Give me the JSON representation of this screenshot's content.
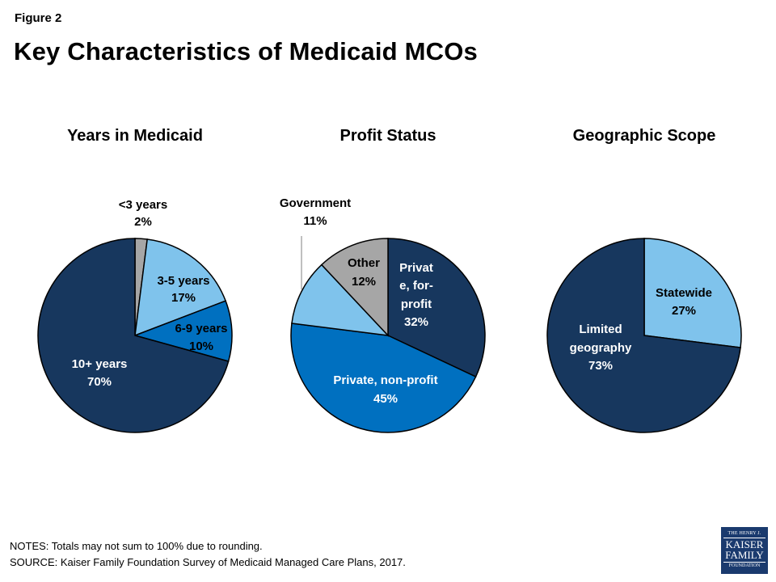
{
  "figure_label": "Figure 2",
  "title": "Key Characteristics of Medicaid MCOs",
  "colors": {
    "dark_navy": "#17375e",
    "medium_blue": "#0070c0",
    "light_blue": "#7fc3ec",
    "gray": "#a6a6a6"
  },
  "chart_data": [
    {
      "type": "pie",
      "title": "Years in Medicaid",
      "slices": [
        {
          "label": "<3 years",
          "value": 2,
          "display": "2%",
          "color": "#a6a6a6"
        },
        {
          "label": "3-5 years",
          "value": 17,
          "display": "17%",
          "color": "#7fc3ec"
        },
        {
          "label": "6-9 years",
          "value": 10,
          "display": "10%",
          "color": "#0070c0"
        },
        {
          "label": "10+ years",
          "value": 70,
          "display": "70%",
          "color": "#17375e"
        }
      ]
    },
    {
      "type": "pie",
      "title": "Profit Status",
      "slices": [
        {
          "label": "Private, for-profit",
          "value": 32,
          "display": "32%",
          "color": "#17375e"
        },
        {
          "label": "Private, non-profit",
          "value": 45,
          "display": "45%",
          "color": "#0070c0"
        },
        {
          "label": "Government",
          "value": 11,
          "display": "11%",
          "color": "#7fc3ec"
        },
        {
          "label": "Other",
          "value": 12,
          "display": "12%",
          "color": "#a6a6a6"
        }
      ]
    },
    {
      "type": "pie",
      "title": "Geographic Scope",
      "slices": [
        {
          "label": "Statewide",
          "value": 27,
          "display": "27%",
          "color": "#7fc3ec"
        },
        {
          "label": "Limited geography",
          "value": 73,
          "display": "73%",
          "color": "#17375e"
        }
      ]
    }
  ],
  "slice_label_lines": {
    "years": {
      "lt3": [
        "<3 years",
        "2%"
      ],
      "y35": [
        "3-5 years",
        "17%"
      ],
      "y69": [
        "6-9 years",
        "10%"
      ],
      "y10": [
        "10+ years",
        "70%"
      ]
    },
    "profit": {
      "forprofit": [
        "Privat",
        "e, for-",
        "profit",
        "32%"
      ],
      "nonprofit": [
        "Private, non-profit",
        "45%"
      ],
      "government": [
        "Government",
        "11%"
      ],
      "other": [
        "Other",
        "12%"
      ]
    },
    "geo": {
      "statewide": [
        "Statewide",
        "27%"
      ],
      "limited": [
        "Limited",
        "geography",
        "73%"
      ]
    }
  },
  "notes": "NOTES: Totals may not sum to 100% due to rounding.",
  "source": "SOURCE: Kaiser Family Foundation Survey of Medicaid Managed Care Plans, 2017.",
  "logo": {
    "line1": "THE HENRY J.",
    "line2": "KAISER",
    "line3": "FAMILY",
    "line4": "FOUNDATION"
  }
}
